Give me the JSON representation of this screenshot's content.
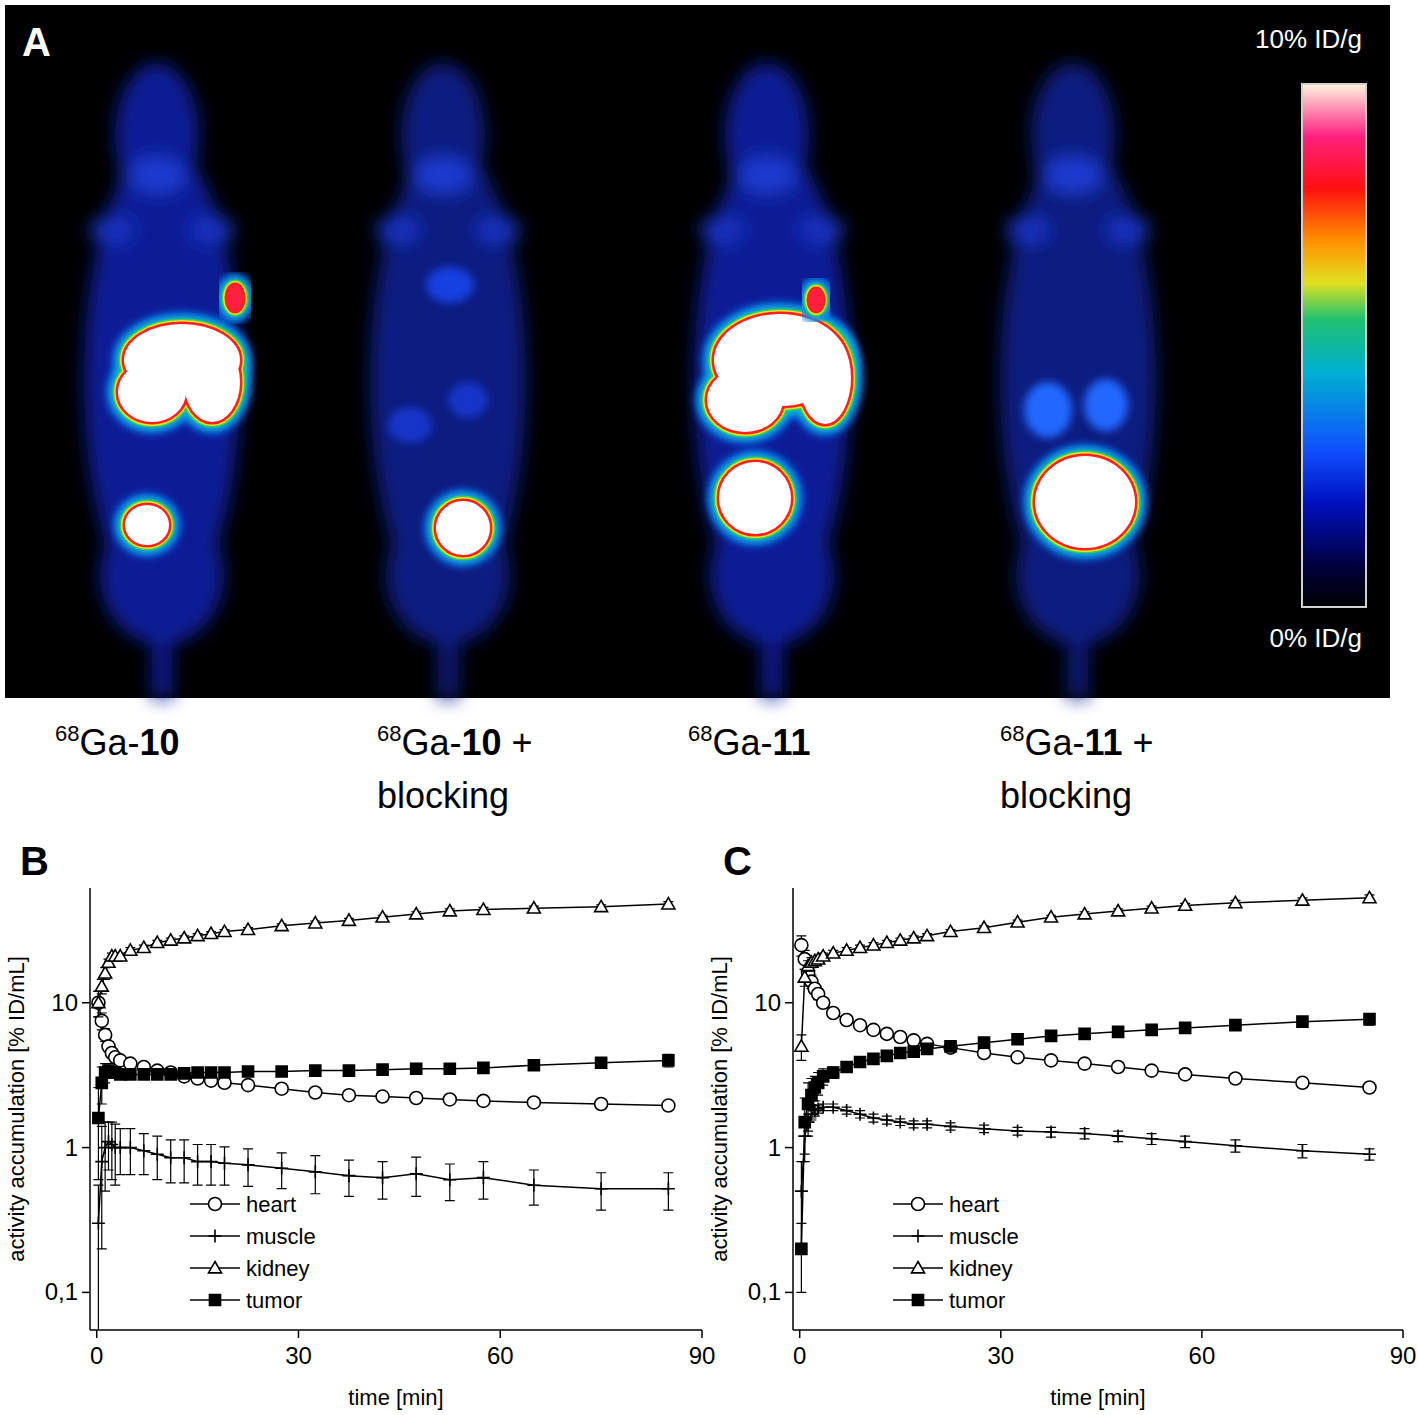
{
  "panel_a": {
    "title": "A",
    "colorbar_range": [
      0,
      10
    ],
    "colorbar_ticks": [
      {
        "value": 10,
        "label": "10% ID/g"
      },
      {
        "value": 0,
        "label": "0% ID/g"
      }
    ],
    "images": [
      {
        "sup": "68",
        "text": "Ga-",
        "bold": "10"
      },
      {
        "sup": "68",
        "text": "Ga-",
        "bold": "10",
        "rest": " +",
        "line2": "blocking"
      },
      {
        "sup": "68",
        "text": "Ga-",
        "bold": "11"
      },
      {
        "sup": "68",
        "text": "Ga-",
        "bold": "11",
        "rest": " +",
        "line2": "blocking"
      }
    ]
  },
  "chart_data": [
    {
      "type": "line",
      "title": "B",
      "x_label": "time [min]",
      "y_label": "activity accumulation [% ID/mL]",
      "log": "y",
      "grid": false,
      "legend": "lower left",
      "xlim": [
        -1,
        90
      ],
      "xticks": [
        0,
        30,
        60,
        90
      ],
      "ylim": [
        0.055,
        62
      ],
      "yticks": [
        {
          "value": 0.1,
          "label": "0,1"
        },
        1,
        10
      ],
      "x": [
        0.25,
        0.75,
        1.25,
        1.75,
        2.25,
        2.75,
        3.5,
        5,
        7,
        9,
        11,
        13,
        15,
        17,
        19,
        22.5,
        27.5,
        32.5,
        37.5,
        42.5,
        47.5,
        52.5,
        57.5,
        65,
        75,
        85
      ],
      "series": [
        {
          "name": "heart",
          "color": "#000000",
          "marker": "circle-open",
          "values": [
            10,
            7.5,
            6,
            5,
            4.5,
            4.2,
            4,
            3.8,
            3.6,
            3.4,
            3.3,
            3.1,
            3,
            2.9,
            2.8,
            2.7,
            2.55,
            2.4,
            2.3,
            2.25,
            2.2,
            2.15,
            2.1,
            2.05,
            2,
            1.95
          ],
          "errors": [
            2,
            1,
            0.6,
            0.4,
            0.3,
            0.25,
            0.2,
            0.15,
            0.15,
            0.12,
            0.12,
            0.1,
            0.1,
            0.1,
            0.1,
            0.1,
            0.1,
            0.1,
            0.08,
            0.08,
            0.08,
            0.08,
            0.08,
            0.08,
            0.1,
            0.1
          ]
        },
        {
          "name": "muscle",
          "color": "#000000",
          "marker": "plus",
          "values": [
            0.3,
            0.8,
            1.0,
            1.1,
            1.05,
            1.0,
            1.0,
            1.0,
            0.95,
            0.9,
            0.85,
            0.85,
            0.8,
            0.8,
            0.78,
            0.76,
            0.72,
            0.68,
            0.64,
            0.62,
            0.66,
            0.6,
            0.62,
            0.55,
            0.52,
            0.52
          ],
          "errors": [
            0.25,
            0.6,
            0.5,
            0.4,
            0.45,
            0.45,
            0.35,
            0.35,
            0.3,
            0.3,
            0.28,
            0.28,
            0.25,
            0.25,
            0.23,
            0.22,
            0.2,
            0.2,
            0.18,
            0.18,
            0.2,
            0.17,
            0.18,
            0.15,
            0.15,
            0.15
          ]
        },
        {
          "name": "kidney",
          "color": "#000000",
          "marker": "triangle-open",
          "values": [
            10,
            13,
            16,
            19,
            21,
            21,
            21,
            23,
            24,
            26,
            27,
            28,
            29,
            30,
            31,
            32,
            34,
            35.5,
            37,
            39,
            41,
            43,
            44,
            45,
            46,
            48
          ],
          "errors": [
            2,
            1.5,
            1.5,
            1,
            1,
            1,
            1,
            1,
            1,
            1,
            1,
            1,
            1,
            1,
            1,
            1,
            1,
            1.2,
            1.2,
            1.2,
            1.5,
            1.5,
            1.5,
            1.5,
            1.5,
            2
          ]
        },
        {
          "name": "tumor",
          "color": "#000000",
          "marker": "square",
          "values": [
            1.6,
            2.8,
            3.3,
            3.4,
            3.3,
            3.3,
            3.2,
            3.2,
            3.2,
            3.2,
            3.2,
            3.25,
            3.3,
            3.3,
            3.3,
            3.35,
            3.35,
            3.4,
            3.4,
            3.45,
            3.5,
            3.5,
            3.55,
            3.7,
            3.85,
            4.0
          ],
          "errors": [
            1,
            0.8,
            0.5,
            0.4,
            0.3,
            0.3,
            0.2,
            0.15,
            0.15,
            0.15,
            0.15,
            0.15,
            0.15,
            0.15,
            0.15,
            0.15,
            0.15,
            0.15,
            0.15,
            0.15,
            0.15,
            0.15,
            0.2,
            0.2,
            0.3,
            0.4
          ]
        }
      ]
    },
    {
      "type": "line",
      "title": "C",
      "x_label": "time [min]",
      "y_label": "activity accumulation [% ID/mL]",
      "log": "y",
      "grid": false,
      "legend": "lower left",
      "xlim": [
        -1,
        90
      ],
      "xticks": [
        0,
        30,
        60,
        90
      ],
      "ylim": [
        0.055,
        62
      ],
      "yticks": [
        {
          "value": 0.1,
          "label": "0,1"
        },
        1,
        10
      ],
      "x": [
        0.25,
        0.75,
        1.25,
        1.75,
        2.25,
        2.75,
        3.5,
        5,
        7,
        9,
        11,
        13,
        15,
        17,
        19,
        22.5,
        27.5,
        32.5,
        37.5,
        42.5,
        47.5,
        52.5,
        57.5,
        65,
        75,
        85
      ],
      "series": [
        {
          "name": "heart",
          "color": "#000000",
          "marker": "circle-open",
          "values": [
            25,
            20,
            16,
            14,
            12.5,
            11.5,
            10,
            8.5,
            7.6,
            7,
            6.5,
            6.1,
            5.8,
            5.5,
            5.2,
            4.9,
            4.5,
            4.2,
            4,
            3.8,
            3.6,
            3.4,
            3.2,
            3,
            2.8,
            2.6
          ],
          "errors": [
            4,
            3,
            2,
            1.5,
            1,
            1,
            0.6,
            0.4,
            0.3,
            0.3,
            0.2,
            0.2,
            0.2,
            0.2,
            0.2,
            0.15,
            0.15,
            0.15,
            0.15,
            0.15,
            0.15,
            0.15,
            0.15,
            0.12,
            0.12,
            0.12
          ]
        },
        {
          "name": "muscle",
          "color": "#000000",
          "marker": "plus",
          "values": [
            0.5,
            1.2,
            1.5,
            1.7,
            1.8,
            1.85,
            1.9,
            1.9,
            1.8,
            1.7,
            1.6,
            1.55,
            1.5,
            1.45,
            1.45,
            1.4,
            1.35,
            1.3,
            1.28,
            1.25,
            1.2,
            1.15,
            1.1,
            1.03,
            0.95,
            0.9
          ],
          "errors": [
            0.3,
            0.3,
            0.2,
            0.15,
            0.15,
            0.12,
            0.1,
            0.1,
            0.1,
            0.1,
            0.1,
            0.1,
            0.08,
            0.08,
            0.08,
            0.08,
            0.08,
            0.08,
            0.1,
            0.1,
            0.1,
            0.1,
            0.1,
            0.1,
            0.1,
            0.08
          ]
        },
        {
          "name": "kidney",
          "color": "#000000",
          "marker": "triangle-open",
          "values": [
            5,
            15,
            18,
            19,
            19.5,
            20,
            21,
            22,
            23,
            24,
            25,
            26,
            27,
            28,
            29,
            31,
            33,
            36,
            39,
            41,
            43,
            45,
            47,
            49,
            51,
            53
          ],
          "errors": [
            1,
            2,
            1.5,
            1.5,
            1,
            1,
            1,
            1,
            1,
            1,
            1,
            1,
            1,
            1,
            1,
            1,
            1,
            1.2,
            1.2,
            1.5,
            1.5,
            1.5,
            1.5,
            2,
            2,
            2.5
          ]
        },
        {
          "name": "tumor",
          "color": "#000000",
          "marker": "square",
          "values": [
            0.2,
            1.5,
            2,
            2.3,
            2.6,
            2.8,
            3.1,
            3.3,
            3.6,
            3.9,
            4.1,
            4.3,
            4.5,
            4.6,
            4.8,
            5,
            5.3,
            5.6,
            5.9,
            6.1,
            6.3,
            6.5,
            6.7,
            7,
            7.4,
            7.7
          ],
          "errors": [
            0.1,
            0.7,
            0.8,
            0.7,
            0.5,
            0.5,
            0.4,
            0.3,
            0.3,
            0.3,
            0.3,
            0.3,
            0.3,
            0.3,
            0.3,
            0.3,
            0.3,
            0.3,
            0.35,
            0.35,
            0.4,
            0.4,
            0.45,
            0.5,
            0.6,
            0.7
          ]
        }
      ]
    }
  ]
}
